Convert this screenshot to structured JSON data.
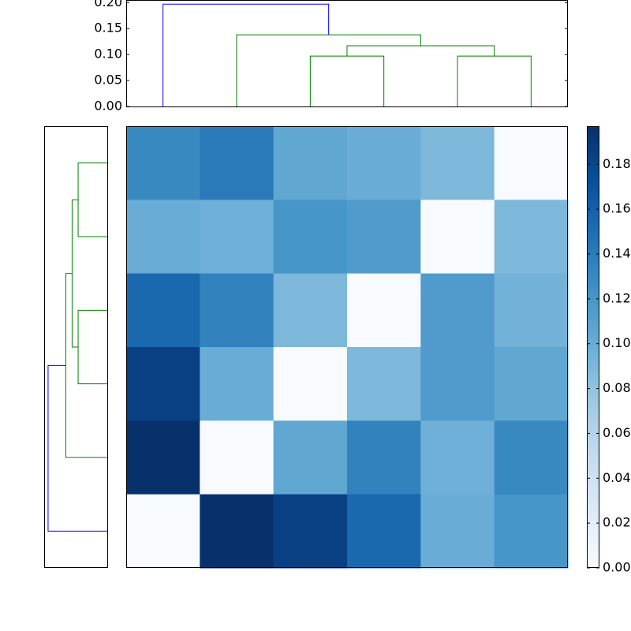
{
  "chart_data": [
    {
      "type": "dendrogram",
      "orientation": "top",
      "ylim": [
        0,
        0.205
      ],
      "yticks": [
        {
          "value": 0,
          "label": "0.00"
        },
        {
          "value": 0.05,
          "label": "0.05"
        },
        {
          "value": 0.1,
          "label": "0.10"
        },
        {
          "value": 0.15,
          "label": "0.15"
        },
        {
          "value": 0.2,
          "label": "0.20"
        }
      ],
      "links": [
        {
          "pos": [
            2,
            2,
            3,
            3
          ],
          "height": [
            0,
            0.097,
            0.097,
            0
          ],
          "color": "#008000"
        },
        {
          "pos": [
            4,
            4,
            5,
            5
          ],
          "height": [
            0,
            0.097,
            0.097,
            0
          ],
          "color": "#008000"
        },
        {
          "pos": [
            2.5,
            2.5,
            4.5,
            4.5
          ],
          "height": [
            0.097,
            0.117,
            0.117,
            0.097
          ],
          "color": "#008000"
        },
        {
          "pos": [
            1,
            1,
            3.5,
            3.5
          ],
          "height": [
            0,
            0.138,
            0.138,
            0.117
          ],
          "color": "#008000"
        },
        {
          "pos": [
            0,
            0,
            2.25,
            2.25
          ],
          "height": [
            0,
            0.197,
            0.197,
            0.138
          ],
          "color": "#0000ff"
        }
      ]
    },
    {
      "type": "dendrogram",
      "orientation": "left",
      "xlim": [
        0.21,
        0
      ],
      "links": [
        {
          "pos": [
            0,
            0,
            1,
            1
          ],
          "height": [
            0,
            0.097,
            0.097,
            0
          ],
          "color": "#008000"
        },
        {
          "pos": [
            2,
            2,
            3,
            3
          ],
          "height": [
            0,
            0.097,
            0.097,
            0
          ],
          "color": "#008000"
        },
        {
          "pos": [
            0.5,
            0.5,
            2.5,
            2.5
          ],
          "height": [
            0.097,
            0.117,
            0.117,
            0.097
          ],
          "color": "#008000"
        },
        {
          "pos": [
            1.5,
            1.5,
            4,
            4
          ],
          "height": [
            0.117,
            0.138,
            0.138,
            0
          ],
          "color": "#008000"
        },
        {
          "pos": [
            2.75,
            2.75,
            5,
            5
          ],
          "height": [
            0.138,
            0.197,
            0.197,
            0
          ],
          "color": "#0000ff"
        }
      ]
    },
    {
      "type": "heatmap",
      "cmap": "Blues",
      "clim": [
        0,
        0.197
      ],
      "cticks": [
        {
          "value": 0,
          "label": "0.00"
        },
        {
          "value": 0.02,
          "label": "0.02"
        },
        {
          "value": 0.04,
          "label": "0.04"
        },
        {
          "value": 0.06,
          "label": "0.06"
        },
        {
          "value": 0.08,
          "label": "0.08"
        },
        {
          "value": 0.1,
          "label": "0.10"
        },
        {
          "value": 0.12,
          "label": "0.12"
        },
        {
          "value": 0.14,
          "label": "0.14"
        },
        {
          "value": 0.16,
          "label": "0.16"
        },
        {
          "value": 0.18,
          "label": "0.18"
        }
      ],
      "values": [
        [
          0.13,
          0.14,
          0.105,
          0.1,
          0.09,
          0
        ],
        [
          0.1,
          0.097,
          0.12,
          0.115,
          0,
          0.09
        ],
        [
          0.155,
          0.135,
          0.09,
          0,
          0.115,
          0.095
        ],
        [
          0.185,
          0.1,
          0,
          0.09,
          0.115,
          0.105
        ],
        [
          0.197,
          0,
          0.105,
          0.135,
          0.097,
          0.13
        ],
        [
          0,
          0.197,
          0.185,
          0.155,
          0.1,
          0.12
        ]
      ]
    }
  ]
}
